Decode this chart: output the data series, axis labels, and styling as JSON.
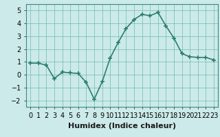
{
  "x": [
    0,
    1,
    2,
    3,
    4,
    5,
    6,
    7,
    8,
    9,
    10,
    11,
    12,
    13,
    14,
    15,
    16,
    17,
    18,
    19,
    20,
    21,
    22,
    23
  ],
  "y": [
    0.9,
    0.9,
    0.75,
    -0.3,
    0.2,
    0.15,
    0.1,
    -0.6,
    -1.9,
    -0.55,
    1.3,
    2.5,
    3.6,
    4.3,
    4.7,
    4.6,
    4.85,
    3.8,
    2.85,
    1.65,
    1.4,
    1.35,
    1.35,
    1.15
  ],
  "line_color": "#2e7d6e",
  "marker": "+",
  "marker_size": 4,
  "marker_edge_width": 1.2,
  "line_width": 1.2,
  "bg_color": "#cceaea",
  "grid_color": "#5aada0",
  "xlabel": "Humidex (Indice chaleur)",
  "xlim": [
    -0.5,
    23.5
  ],
  "ylim": [
    -2.5,
    5.5
  ],
  "yticks": [
    -2,
    -1,
    0,
    1,
    2,
    3,
    4,
    5
  ],
  "xtick_labels": [
    "0",
    "1",
    "2",
    "3",
    "4",
    "5",
    "6",
    "7",
    "8",
    "9",
    "10",
    "11",
    "12",
    "13",
    "14",
    "15",
    "16",
    "17",
    "18",
    "19",
    "20",
    "21",
    "22",
    "23"
  ],
  "xlabel_fontsize": 8,
  "tick_fontsize": 7
}
